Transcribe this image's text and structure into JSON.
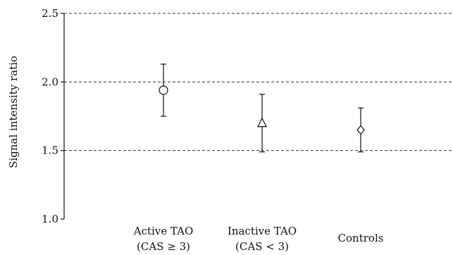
{
  "chart_data": {
    "type": "scatter",
    "title": "",
    "xlabel": "",
    "ylabel": "Signal intensity ratio",
    "ylim": [
      1.0,
      2.5
    ],
    "yticks": [
      "1.0",
      "1.5",
      "2.0",
      "2.5"
    ],
    "grid": "horizontal-dashed",
    "categories": [
      {
        "line1": "Active TAO",
        "line2": "(CAS ≥ 3)"
      },
      {
        "line1": "Inactive TAO",
        "line2": "(CAS < 3)"
      },
      {
        "line1": "Controls",
        "line2": ""
      }
    ],
    "points": [
      {
        "marker": "circle",
        "value": 1.94,
        "low": 1.75,
        "high": 2.13
      },
      {
        "marker": "triangle",
        "value": 1.7,
        "low": 1.49,
        "high": 1.91
      },
      {
        "marker": "diamond",
        "value": 1.65,
        "low": 1.49,
        "high": 1.81
      }
    ],
    "colors": {
      "ink": "#111111",
      "grid": "#333333"
    }
  }
}
